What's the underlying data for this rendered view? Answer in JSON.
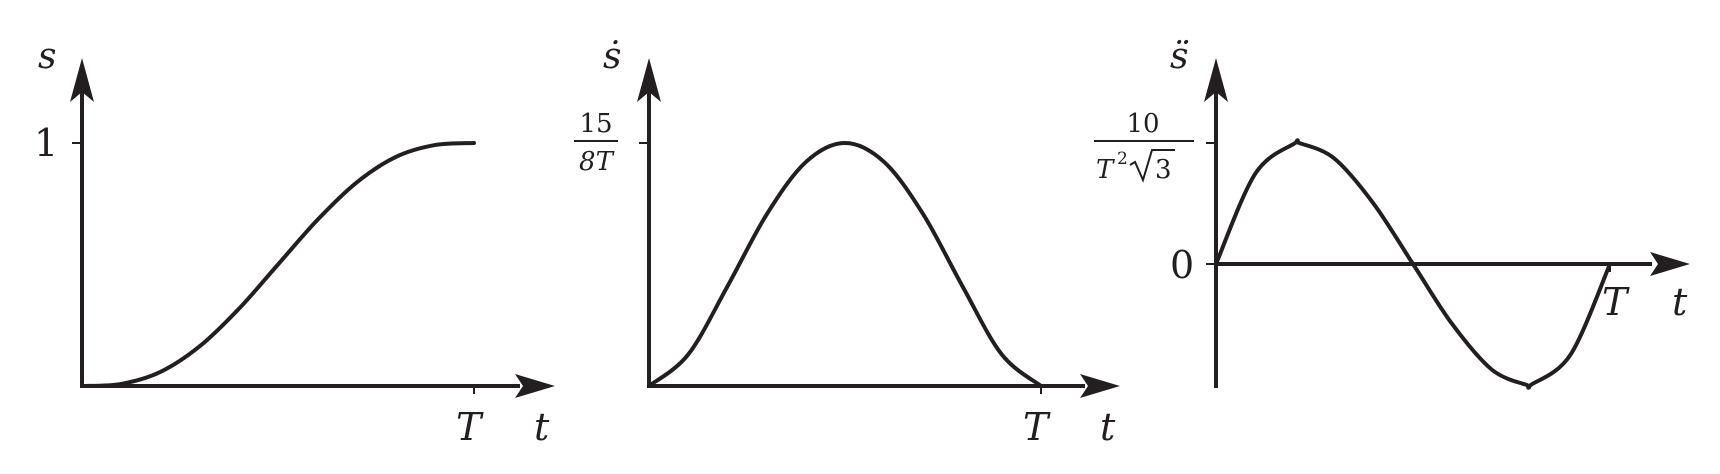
{
  "chart_data": [
    {
      "type": "line",
      "y_axis_label": "s",
      "x_axis_label": "t",
      "x_tick_label": "T",
      "y_tick_label": "1",
      "xlim": [
        0,
        1
      ],
      "ylim": [
        0,
        1
      ],
      "series": [
        {
          "x": [
            0,
            0.1,
            0.2,
            0.3,
            0.4,
            0.5,
            0.6,
            0.7,
            0.8,
            0.9,
            1
          ],
          "y": [
            0,
            0.0086,
            0.0579,
            0.1631,
            0.3174,
            0.5,
            0.6826,
            0.8369,
            0.9421,
            0.9914,
            1
          ]
        }
      ]
    },
    {
      "type": "line",
      "y_axis_label": "ṡ",
      "x_axis_label": "t",
      "x_tick_label": "T",
      "y_tick_label": {
        "numerator": "15",
        "denominator": "8T"
      },
      "xlim": [
        0,
        1
      ],
      "ylim": [
        0,
        1.875
      ],
      "series": [
        {
          "x": [
            0,
            0.1,
            0.2,
            0.3,
            0.4,
            0.5,
            0.6,
            0.7,
            0.8,
            0.9,
            1
          ],
          "y": [
            0,
            0.243,
            0.768,
            1.323,
            1.728,
            1.875,
            1.728,
            1.323,
            0.768,
            0.243,
            0
          ]
        }
      ]
    },
    {
      "type": "line",
      "y_axis_label": "s̈",
      "x_axis_label": "t",
      "x_tick_label": "T",
      "y_tick_label_top": {
        "numerator": "10",
        "denominator": "T",
        "exponent": "2",
        "radical": "3"
      },
      "y_tick_label_zero": "0",
      "xlim": [
        0,
        1
      ],
      "ylim": [
        -5.7735,
        5.7735
      ],
      "series": [
        {
          "x": [
            0,
            0.1,
            0.2,
            0.2113,
            0.3,
            0.4,
            0.5,
            0.6,
            0.7,
            0.7887,
            0.8,
            0.9,
            1
          ],
          "y": [
            0,
            4.32,
            5.76,
            5.7735,
            5.04,
            2.88,
            0,
            -2.88,
            -5.04,
            -5.7735,
            -5.76,
            -4.32,
            0
          ]
        }
      ]
    }
  ]
}
